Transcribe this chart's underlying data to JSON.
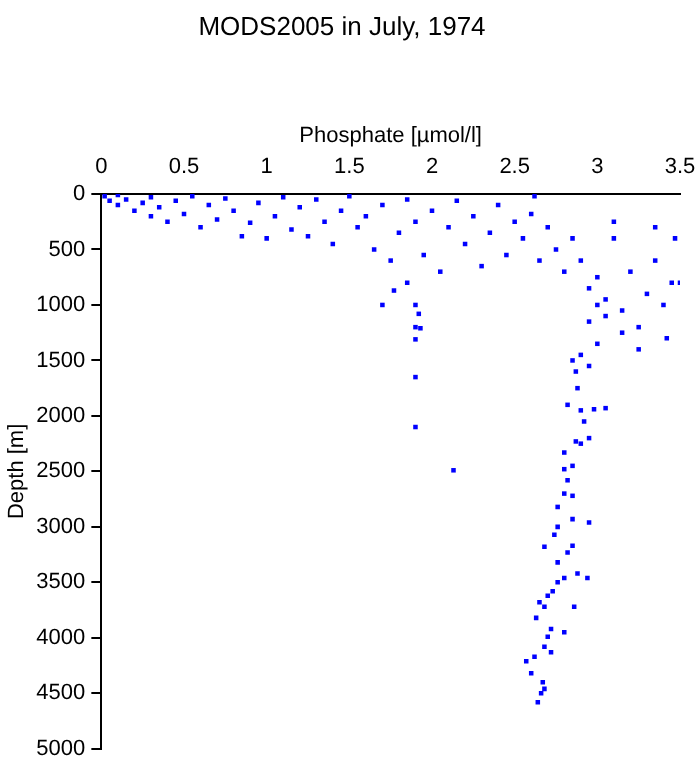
{
  "chart_data": {
    "type": "scatter",
    "title": "MODS2005 in July, 1974",
    "xlabel": "Phosphate [µmol/l]",
    "ylabel": "Depth [m]",
    "marker": "square",
    "xlim": [
      0,
      3.5
    ],
    "xticks": [
      0,
      0.5,
      1,
      1.5,
      2,
      2.5,
      3,
      3.5
    ],
    "ylim": [
      5000,
      0
    ],
    "yticks": [
      0,
      500,
      1000,
      1500,
      2000,
      2500,
      3000,
      3500,
      4000,
      4500,
      5000
    ],
    "series": [
      {
        "color": "#0000ff",
        "x": [
          0.02,
          0.05,
          0.1,
          0.1,
          0.15,
          0.2,
          0.25,
          0.3,
          0.3,
          0.35,
          0.4,
          0.45,
          0.5,
          0.55,
          0.6,
          0.65,
          0.7,
          0.75,
          0.8,
          0.85,
          0.9,
          0.95,
          1.0,
          1.05,
          1.1,
          1.15,
          1.2,
          1.25,
          1.3,
          1.35,
          1.4,
          1.45,
          1.5,
          1.55,
          1.6,
          1.65,
          1.7,
          1.75,
          1.8,
          1.85,
          1.9,
          1.95,
          2.0,
          2.05,
          2.1,
          2.15,
          2.2,
          2.25,
          2.3,
          2.35,
          2.4,
          2.45,
          2.5,
          2.55,
          2.6,
          2.65,
          2.62,
          2.7,
          2.75,
          2.8,
          2.85,
          2.9,
          2.95,
          3.0,
          3.05,
          3.1,
          3.15,
          3.2,
          3.25,
          3.3,
          3.35,
          3.4,
          3.45,
          3.5,
          3.47,
          3.42,
          3.35,
          3.25,
          3.1,
          3.15,
          2.95,
          3.0,
          3.05,
          3.0,
          2.9,
          2.85,
          2.95,
          2.87,
          2.82,
          2.88,
          2.9,
          2.92,
          2.98,
          3.05,
          1.85,
          1.9,
          1.92,
          1.9,
          1.93,
          1.9,
          1.9,
          1.9,
          1.7,
          2.13,
          1.77,
          2.8,
          2.8,
          2.85,
          2.87,
          2.95,
          2.9,
          2.82,
          2.8,
          2.85,
          2.76,
          2.85,
          2.95,
          2.76,
          2.74,
          2.68,
          2.82,
          2.85,
          2.76,
          2.8,
          2.94,
          2.76,
          2.88,
          2.73,
          2.7,
          2.65,
          2.68,
          2.86,
          2.63,
          2.72,
          2.7,
          2.8,
          2.68,
          2.72,
          2.62,
          2.57,
          2.6,
          2.67,
          2.68,
          2.66,
          2.64
        ],
        "values": [
          20,
          60,
          10,
          100,
          50,
          150,
          80,
          30,
          200,
          120,
          250,
          60,
          180,
          20,
          300,
          100,
          230,
          40,
          150,
          380,
          260,
          80,
          400,
          200,
          30,
          320,
          120,
          380,
          50,
          250,
          450,
          150,
          20,
          300,
          200,
          500,
          100,
          600,
          350,
          50,
          250,
          550,
          150,
          700,
          300,
          60,
          450,
          200,
          650,
          350,
          100,
          550,
          250,
          400,
          180,
          600,
          20,
          300,
          500,
          700,
          400,
          600,
          850,
          750,
          950,
          400,
          1050,
          700,
          1200,
          900,
          600,
          1000,
          800,
          800,
          400,
          1300,
          300,
          1400,
          250,
          1250,
          1150,
          1350,
          1100,
          1000,
          1450,
          1500,
          1550,
          1600,
          1900,
          1750,
          1950,
          2050,
          1940,
          1930,
          800,
          1000,
          1080,
          1200,
          1210,
          1310,
          1650,
          2100,
          1000,
          2490,
          870,
          2330,
          2480,
          2450,
          2230,
          2200,
          2250,
          2580,
          2700,
          2720,
          2820,
          2930,
          2960,
          3000,
          3070,
          3180,
          3230,
          3170,
          3320,
          3460,
          3460,
          3500,
          3420,
          3580,
          3620,
          3680,
          3720,
          3720,
          3820,
          3920,
          3990,
          3950,
          4080,
          4130,
          4170,
          4210,
          4320,
          4400,
          4460,
          4500,
          4580
        ]
      }
    ]
  }
}
